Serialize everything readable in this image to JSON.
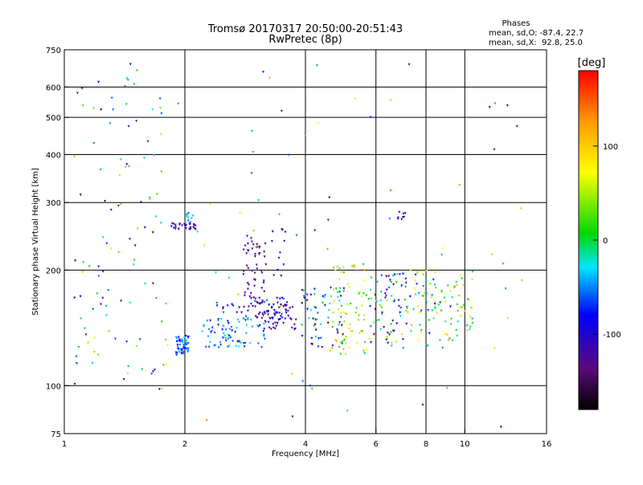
{
  "chart_data": {
    "type": "scatter",
    "title": "Tromsø 20170317 20:50:00-20:51:43",
    "subtitle": "RwPretec (8p)",
    "xlabel": "Frequency [MHz]",
    "ylabel": "Stationary phase Virtual Height [km]",
    "x_scale": "log",
    "y_scale": "log",
    "xlim": [
      1,
      16
    ],
    "ylim": [
      75,
      750
    ],
    "x_ticks": [
      "1",
      "2",
      "4",
      "6",
      "8",
      "10",
      "16"
    ],
    "x_grid": [
      2,
      4,
      6,
      8,
      10
    ],
    "y_ticks": [
      "75",
      "100",
      "200",
      "300",
      "400",
      "500",
      "600",
      "750"
    ],
    "y_grid": [
      100,
      200,
      300,
      400,
      500,
      600
    ],
    "stats": {
      "header": "Phases",
      "line1": "mean, sd,O: -87.4, 22.7",
      "line2": "mean, sd,X:  92.8, 25.0"
    },
    "colorbar": {
      "label": "[deg]",
      "range": [
        -180,
        180
      ],
      "ticks": [
        "100",
        "0",
        "-100"
      ],
      "tick_values": [
        100,
        0,
        -100
      ]
    },
    "clusters": [
      {
        "f": [
          1.9,
          2.05
        ],
        "h": [
          120,
          135
        ],
        "n": 55,
        "phase": -60,
        "spread": 30
      },
      {
        "f": [
          1.85,
          2.15
        ],
        "h": [
          255,
          265
        ],
        "n": 30,
        "phase": -120,
        "spread": 15
      },
      {
        "f": [
          2.0,
          2.1
        ],
        "h": [
          265,
          285
        ],
        "n": 10,
        "phase": -40,
        "spread": 20
      },
      {
        "f": [
          2.2,
          3.2
        ],
        "h": [
          125,
          150
        ],
        "n": 75,
        "phase": -50,
        "spread": 30
      },
      {
        "f": [
          2.4,
          3.6
        ],
        "h": [
          150,
          170
        ],
        "n": 40,
        "phase": -90,
        "spread": 40
      },
      {
        "f": [
          2.8,
          3.2
        ],
        "h": [
          160,
          250
        ],
        "n": 55,
        "phase": -120,
        "spread": 20
      },
      {
        "f": [
          3.0,
          3.8
        ],
        "h": [
          140,
          165
        ],
        "n": 60,
        "phase": -115,
        "spread": 25
      },
      {
        "f": [
          3.3,
          3.6
        ],
        "h": [
          190,
          260
        ],
        "n": 12,
        "phase": -110,
        "spread": 30
      },
      {
        "f": [
          3.9,
          5.0
        ],
        "h": [
          125,
          180
        ],
        "n": 65,
        "phase": -80,
        "spread": 90
      },
      {
        "f": [
          4.6,
          5.8
        ],
        "h": [
          120,
          210
        ],
        "n": 70,
        "phase": 60,
        "spread": 60
      },
      {
        "f": [
          5.8,
          7.2
        ],
        "h": [
          125,
          200
        ],
        "n": 75,
        "phase": -50,
        "spread": 100
      },
      {
        "f": [
          6.8,
          7.1
        ],
        "h": [
          270,
          290
        ],
        "n": 8,
        "phase": -120,
        "spread": 10
      },
      {
        "f": [
          7.2,
          8.8
        ],
        "h": [
          125,
          200
        ],
        "n": 55,
        "phase": 0,
        "spread": 100
      },
      {
        "f": [
          8.6,
          10.5
        ],
        "h": [
          130,
          200
        ],
        "n": 50,
        "phase": 40,
        "spread": 90
      },
      {
        "f": [
          1.05,
          1.8
        ],
        "h": [
          95,
          700
        ],
        "n": 110,
        "phase": -40,
        "spread": 110
      },
      {
        "f": [
          1.8,
          14
        ],
        "h": [
          78,
          700
        ],
        "n": 70,
        "phase": 0,
        "spread": 150
      }
    ]
  }
}
